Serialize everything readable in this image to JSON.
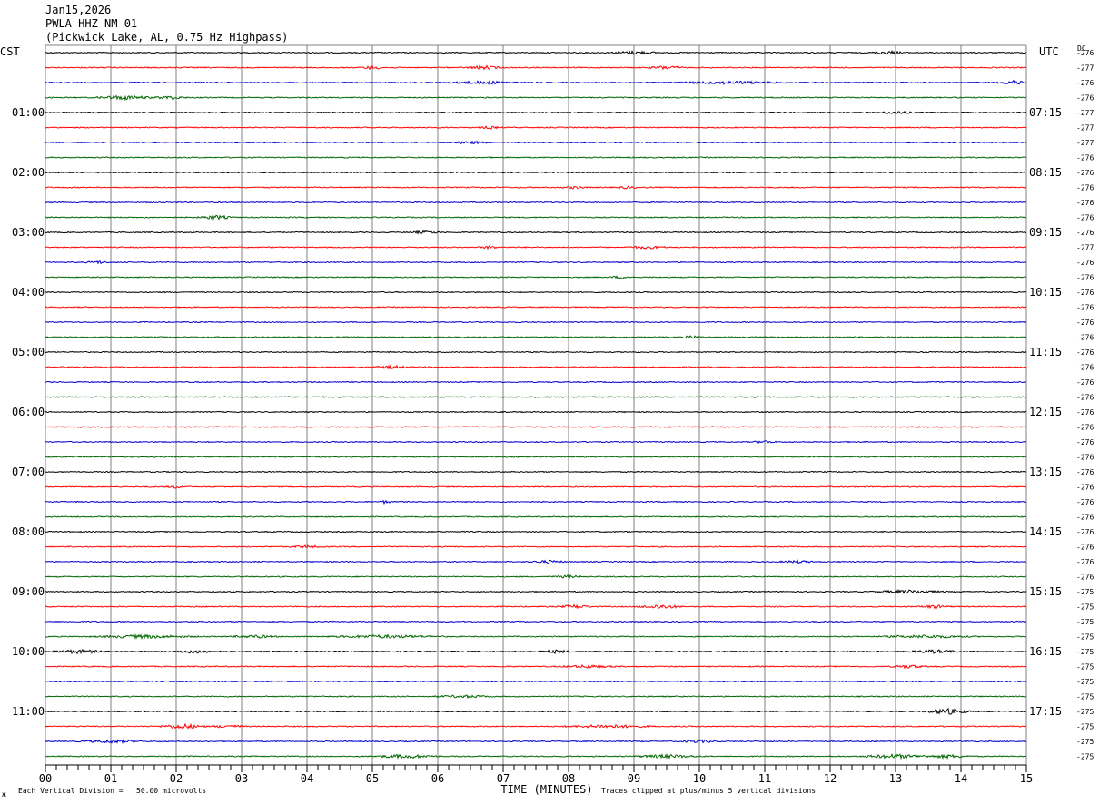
{
  "header": {
    "date": "Jan15,2026",
    "station": "PWLA HHZ NM 01",
    "location": "(Pickwick Lake, AL, 0.75 Hz Highpass)"
  },
  "footer": {
    "scale_note": "Each Vertical Division =   50.00 microvolts",
    "clip_note": "Traces clipped at plus/minus 5 vertical divisions",
    "corner_mark": "ж"
  },
  "colors": {
    "cycle": [
      "#000000",
      "#ff0000",
      "#0000cc",
      "#006600"
    ],
    "grid": "#808080"
  },
  "chart_data": {
    "type": "line",
    "title": "",
    "xlabel": "TIME (MINUTES)",
    "x_ticks": [
      "00",
      "01",
      "02",
      "03",
      "04",
      "05",
      "06",
      "07",
      "08",
      "09",
      "10",
      "11",
      "12",
      "13",
      "14",
      "15"
    ],
    "xlim": [
      0,
      15
    ],
    "left_axis_label": "CST",
    "right_axis_label": "UTC",
    "dc_label": "DC",
    "left_hour_labels": [
      "01:00",
      "02:00",
      "03:00",
      "04:00",
      "05:00",
      "06:00",
      "07:00",
      "08:00",
      "09:00",
      "10:00",
      "11:00"
    ],
    "right_hour_labels": [
      "07:15",
      "08:15",
      "09:15",
      "10:15",
      "11:15",
      "12:15",
      "13:15",
      "14:15",
      "15:15",
      "16:15",
      "17:15"
    ],
    "trace_count": 48,
    "dc_offsets": [
      "-276",
      "-277",
      "-276",
      "-276",
      "-277",
      "-277",
      "-277",
      "-276",
      "-276",
      "-276",
      "-276",
      "-276",
      "-276",
      "-277",
      "-276",
      "-276",
      "-276",
      "-276",
      "-276",
      "-276",
      "-276",
      "-276",
      "-276",
      "-276",
      "-276",
      "-276",
      "-276",
      "-276",
      "-276",
      "-276",
      "-276",
      "-276",
      "-276",
      "-276",
      "-276",
      "-276",
      "-275",
      "-275",
      "-275",
      "-275",
      "-275",
      "-275",
      "-275",
      "-275",
      "-275",
      "-275",
      "-275",
      "-275"
    ],
    "events": [
      {
        "trace": 0,
        "x": 9.0,
        "amp": 1.6,
        "w": 0.4
      },
      {
        "trace": 0,
        "x": 12.9,
        "amp": 1.6,
        "w": 0.3
      },
      {
        "trace": 1,
        "x": 5.0,
        "amp": 1.6,
        "w": 0.2
      },
      {
        "trace": 1,
        "x": 6.7,
        "amp": 1.8,
        "w": 0.3
      },
      {
        "trace": 1,
        "x": 9.5,
        "amp": 1.8,
        "w": 0.3
      },
      {
        "trace": 2,
        "x": 6.7,
        "amp": 1.5,
        "w": 0.6
      },
      {
        "trace": 2,
        "x": 10.5,
        "amp": 1.4,
        "w": 1.0
      },
      {
        "trace": 2,
        "x": 14.8,
        "amp": 2.0,
        "w": 0.3
      },
      {
        "trace": 3,
        "x": 1.2,
        "amp": 2.2,
        "w": 0.5
      },
      {
        "trace": 3,
        "x": 1.9,
        "amp": 1.6,
        "w": 0.3
      },
      {
        "trace": 4,
        "x": 13.0,
        "amp": 1.4,
        "w": 0.3
      },
      {
        "trace": 5,
        "x": 6.8,
        "amp": 1.2,
        "w": 0.2
      },
      {
        "trace": 6,
        "x": 6.5,
        "amp": 1.3,
        "w": 0.3
      },
      {
        "trace": 9,
        "x": 8.1,
        "amp": 1.1,
        "w": 0.2
      },
      {
        "trace": 9,
        "x": 8.9,
        "amp": 1.1,
        "w": 0.2
      },
      {
        "trace": 11,
        "x": 2.6,
        "amp": 2.0,
        "w": 0.3
      },
      {
        "trace": 12,
        "x": 5.8,
        "amp": 1.2,
        "w": 0.3
      },
      {
        "trace": 13,
        "x": 6.8,
        "amp": 1.3,
        "w": 0.2
      },
      {
        "trace": 13,
        "x": 9.2,
        "amp": 1.3,
        "w": 0.4
      },
      {
        "trace": 14,
        "x": 0.8,
        "amp": 1.3,
        "w": 0.2
      },
      {
        "trace": 15,
        "x": 8.8,
        "amp": 1.2,
        "w": 0.2
      },
      {
        "trace": 19,
        "x": 9.9,
        "amp": 1.3,
        "w": 0.2
      },
      {
        "trace": 21,
        "x": 5.3,
        "amp": 1.6,
        "w": 0.3
      },
      {
        "trace": 26,
        "x": 11.0,
        "amp": 1.2,
        "w": 0.2
      },
      {
        "trace": 29,
        "x": 2.0,
        "amp": 1.2,
        "w": 0.2
      },
      {
        "trace": 30,
        "x": 5.2,
        "amp": 1.6,
        "w": 0.1
      },
      {
        "trace": 33,
        "x": 4.0,
        "amp": 1.2,
        "w": 0.3
      },
      {
        "trace": 34,
        "x": 7.7,
        "amp": 1.3,
        "w": 0.3
      },
      {
        "trace": 34,
        "x": 11.5,
        "amp": 1.2,
        "w": 0.3
      },
      {
        "trace": 35,
        "x": 8.0,
        "amp": 1.2,
        "w": 0.3
      },
      {
        "trace": 36,
        "x": 13.2,
        "amp": 1.5,
        "w": 0.6
      },
      {
        "trace": 37,
        "x": 8.1,
        "amp": 1.7,
        "w": 0.3
      },
      {
        "trace": 37,
        "x": 9.4,
        "amp": 2.0,
        "w": 0.4
      },
      {
        "trace": 37,
        "x": 13.6,
        "amp": 1.5,
        "w": 0.3
      },
      {
        "trace": 39,
        "x": 1.5,
        "amp": 1.6,
        "w": 0.9
      },
      {
        "trace": 39,
        "x": 3.2,
        "amp": 1.5,
        "w": 0.4
      },
      {
        "trace": 39,
        "x": 5.2,
        "amp": 1.4,
        "w": 1.0
      },
      {
        "trace": 39,
        "x": 13.5,
        "amp": 1.4,
        "w": 0.8
      },
      {
        "trace": 40,
        "x": 0.5,
        "amp": 1.8,
        "w": 0.5
      },
      {
        "trace": 40,
        "x": 2.3,
        "amp": 1.6,
        "w": 0.4
      },
      {
        "trace": 40,
        "x": 7.8,
        "amp": 1.6,
        "w": 0.3
      },
      {
        "trace": 40,
        "x": 13.6,
        "amp": 1.5,
        "w": 0.5
      },
      {
        "trace": 41,
        "x": 8.3,
        "amp": 1.3,
        "w": 0.5
      },
      {
        "trace": 41,
        "x": 13.2,
        "amp": 1.6,
        "w": 0.3
      },
      {
        "trace": 43,
        "x": 6.4,
        "amp": 1.2,
        "w": 0.5
      },
      {
        "trace": 44,
        "x": 13.8,
        "amp": 3.0,
        "w": 0.4
      },
      {
        "trace": 45,
        "x": 2.1,
        "amp": 2.5,
        "w": 0.4
      },
      {
        "trace": 45,
        "x": 2.8,
        "amp": 1.5,
        "w": 0.3
      },
      {
        "trace": 45,
        "x": 8.6,
        "amp": 1.6,
        "w": 0.8
      },
      {
        "trace": 46,
        "x": 1.0,
        "amp": 1.5,
        "w": 0.5
      },
      {
        "trace": 46,
        "x": 10.0,
        "amp": 1.4,
        "w": 0.3
      },
      {
        "trace": 47,
        "x": 5.5,
        "amp": 1.8,
        "w": 0.6
      },
      {
        "trace": 47,
        "x": 9.5,
        "amp": 1.6,
        "w": 0.6
      },
      {
        "trace": 47,
        "x": 13.0,
        "amp": 2.0,
        "w": 0.6
      },
      {
        "trace": 47,
        "x": 13.8,
        "amp": 1.6,
        "w": 0.4
      }
    ]
  }
}
